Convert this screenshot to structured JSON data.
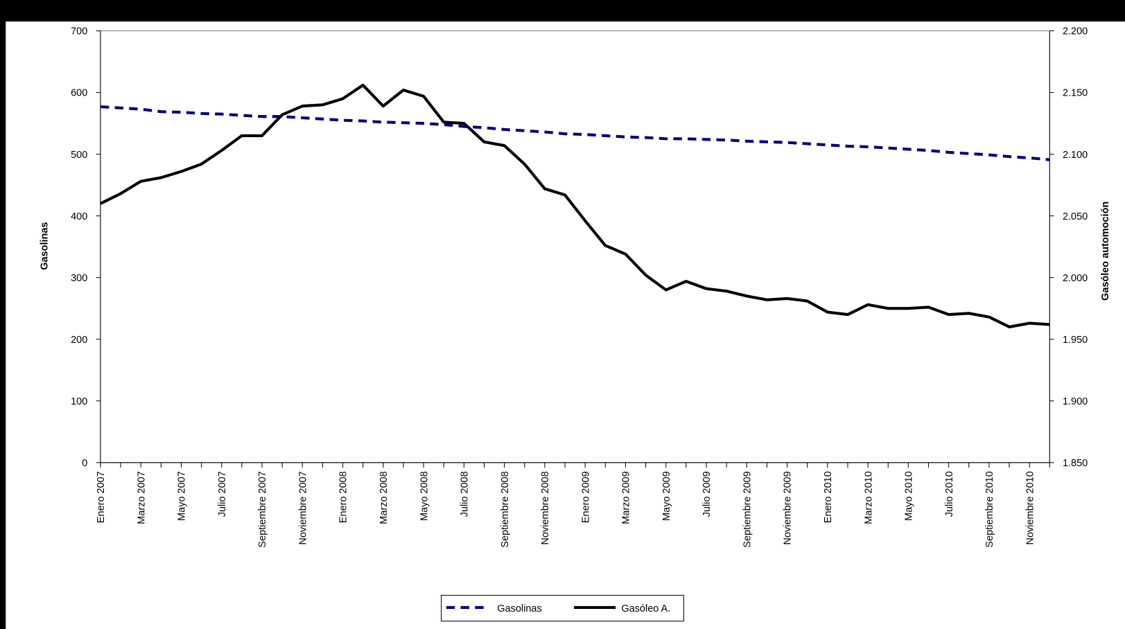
{
  "chart_data": {
    "type": "line",
    "y_label": "Gasolinas",
    "y2_label": "Gasóleo automoción",
    "categories": [
      "Enero 2007",
      null,
      "Marzo 2007",
      null,
      "Mayo 2007",
      null,
      "Julio 2007",
      null,
      "Septiembre 2007",
      null,
      "Noviembre 2007",
      null,
      "Enero 2008",
      null,
      "Marzo 2008",
      null,
      "Mayo 2008",
      null,
      "Julio 2008",
      null,
      "Septiembre 2008",
      null,
      "Noviembre 2008",
      null,
      "Enero 2009",
      null,
      "Marzo 2009",
      null,
      "Mayo 2009",
      null,
      "Julio 2009",
      null,
      "Septiembre 2009",
      null,
      "Noviembre 2009",
      null,
      "Enero 2010",
      null,
      "Marzo 2010",
      null,
      "Mayo 2010",
      null,
      "Julio 2010",
      null,
      "Septiembre 2010",
      null,
      "Noviembre 2010",
      null
    ],
    "series": [
      {
        "name": "Gasolinas",
        "color": "#000080",
        "dash": true,
        "axis": "y",
        "values": [
          577,
          575,
          573,
          569,
          568,
          566,
          565,
          563,
          561,
          561,
          559,
          557,
          555,
          554,
          552,
          551,
          550,
          548,
          545,
          543,
          540,
          538,
          536,
          533,
          532,
          530,
          528,
          527,
          525,
          525,
          524,
          523,
          521,
          520,
          519,
          517,
          515,
          513,
          512,
          510,
          508,
          506,
          503,
          501,
          499,
          496,
          494,
          491
        ]
      },
      {
        "name": "Gasóleo A.",
        "color": "#000000",
        "dash": false,
        "axis": "y2",
        "values": [
          2060,
          2068,
          2078,
          2081,
          2086,
          2092,
          2103,
          2115,
          2115,
          2132,
          2139,
          2140,
          2145,
          2156,
          2139,
          2152,
          2147,
          2126,
          2125,
          2110,
          2107,
          2092,
          2072,
          2067,
          2046,
          2026,
          2019,
          2002,
          1990,
          1997,
          1991,
          1989,
          1985,
          1982,
          1983,
          1981,
          1972,
          1970,
          1978,
          1975,
          1975,
          1976,
          1970,
          1971,
          1968,
          1960,
          1963,
          1962
        ]
      }
    ],
    "ylim": [
      0,
      700
    ],
    "yticks": [
      0,
      100,
      200,
      300,
      400,
      500,
      600,
      700
    ],
    "y2lim": [
      1850,
      2200
    ],
    "y2ticks": [
      {
        "value": 1850,
        "label": "1.850"
      },
      {
        "value": 1900,
        "label": "1.900"
      },
      {
        "value": 1950,
        "label": "1.950"
      },
      {
        "value": 2000,
        "label": "2.000"
      },
      {
        "value": 2050,
        "label": "2.050"
      },
      {
        "value": 2100,
        "label": "2.100"
      },
      {
        "value": 2150,
        "label": "2.150"
      },
      {
        "value": 2200,
        "label": "2.200"
      }
    ],
    "legend": "bottom"
  }
}
